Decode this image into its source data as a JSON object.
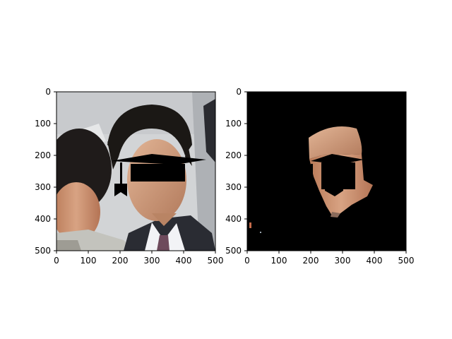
{
  "chart_data": [
    {
      "type": "image",
      "content": "photo of two people; a black graduation-cap shape covers the man's eyes",
      "xlim": [
        0,
        500
      ],
      "ylim": [
        500,
        0
      ],
      "xticks": [
        "0",
        "100",
        "200",
        "300",
        "400",
        "500"
      ],
      "yticks": [
        "0",
        "100",
        "200",
        "300",
        "400",
        "500"
      ],
      "title": "",
      "xlabel": "",
      "ylabel": ""
    },
    {
      "type": "image",
      "content": "black background showing only the segmented face region, with the black cap shape over it",
      "xlim": [
        0,
        500
      ],
      "ylim": [
        500,
        0
      ],
      "xticks": [
        "0",
        "100",
        "200",
        "300",
        "400",
        "500"
      ],
      "yticks": [
        "0",
        "100",
        "200",
        "300",
        "400",
        "500"
      ],
      "title": "",
      "xlabel": "",
      "ylabel": ""
    }
  ],
  "colors": {
    "frame": "#000000",
    "mask_background": "#000000",
    "skin": "#c98f6e",
    "hair": "#1b1815",
    "suit": "#2a2c33",
    "shirt": "#f2f3f6",
    "tie": "#6e4a5c",
    "background_wall": "#d6d8da",
    "woman_jacket": "#c3c3bd",
    "cap": "#000000"
  }
}
